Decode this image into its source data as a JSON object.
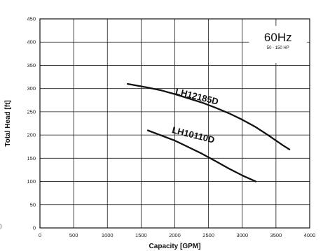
{
  "chart_data": {
    "type": "line",
    "title": "",
    "xlabel": "Capacity [GPM]",
    "ylabel": "Total Head [ft]",
    "xlim": [
      0,
      4000
    ],
    "ylim": [
      0,
      450
    ],
    "x_ticks": [
      0,
      500,
      1000,
      1500,
      2000,
      2500,
      3000,
      3500,
      4000
    ],
    "y_ticks": [
      0,
      50,
      100,
      150,
      200,
      250,
      300,
      350,
      400,
      450
    ],
    "grid": true,
    "badge": {
      "main": "60Hz",
      "sub": "50 - 150 HP"
    },
    "left_edge_mark": ")",
    "series": [
      {
        "name": "LH12185D",
        "label_at": [
          2000,
          288
        ],
        "label_rotation": 14,
        "points": [
          [
            1300,
            310
          ],
          [
            1600,
            302
          ],
          [
            1800,
            296
          ],
          [
            2000,
            288
          ],
          [
            2200,
            279
          ],
          [
            2400,
            270
          ],
          [
            2600,
            259
          ],
          [
            2800,
            247
          ],
          [
            3000,
            233
          ],
          [
            3200,
            217
          ],
          [
            3400,
            198
          ],
          [
            3500,
            188
          ],
          [
            3600,
            178
          ],
          [
            3700,
            169
          ]
        ]
      },
      {
        "name": "LH10110D",
        "label_at": [
          1950,
          205
        ],
        "label_rotation": 14,
        "points": [
          [
            1600,
            210
          ],
          [
            1800,
            199
          ],
          [
            2000,
            188
          ],
          [
            2200,
            174
          ],
          [
            2400,
            160
          ],
          [
            2600,
            144
          ],
          [
            2800,
            128
          ],
          [
            3000,
            113
          ],
          [
            3200,
            100
          ]
        ]
      }
    ]
  },
  "colors": {
    "line": "#111111",
    "grid": "#1a1a1a",
    "frame": "#111111"
  }
}
